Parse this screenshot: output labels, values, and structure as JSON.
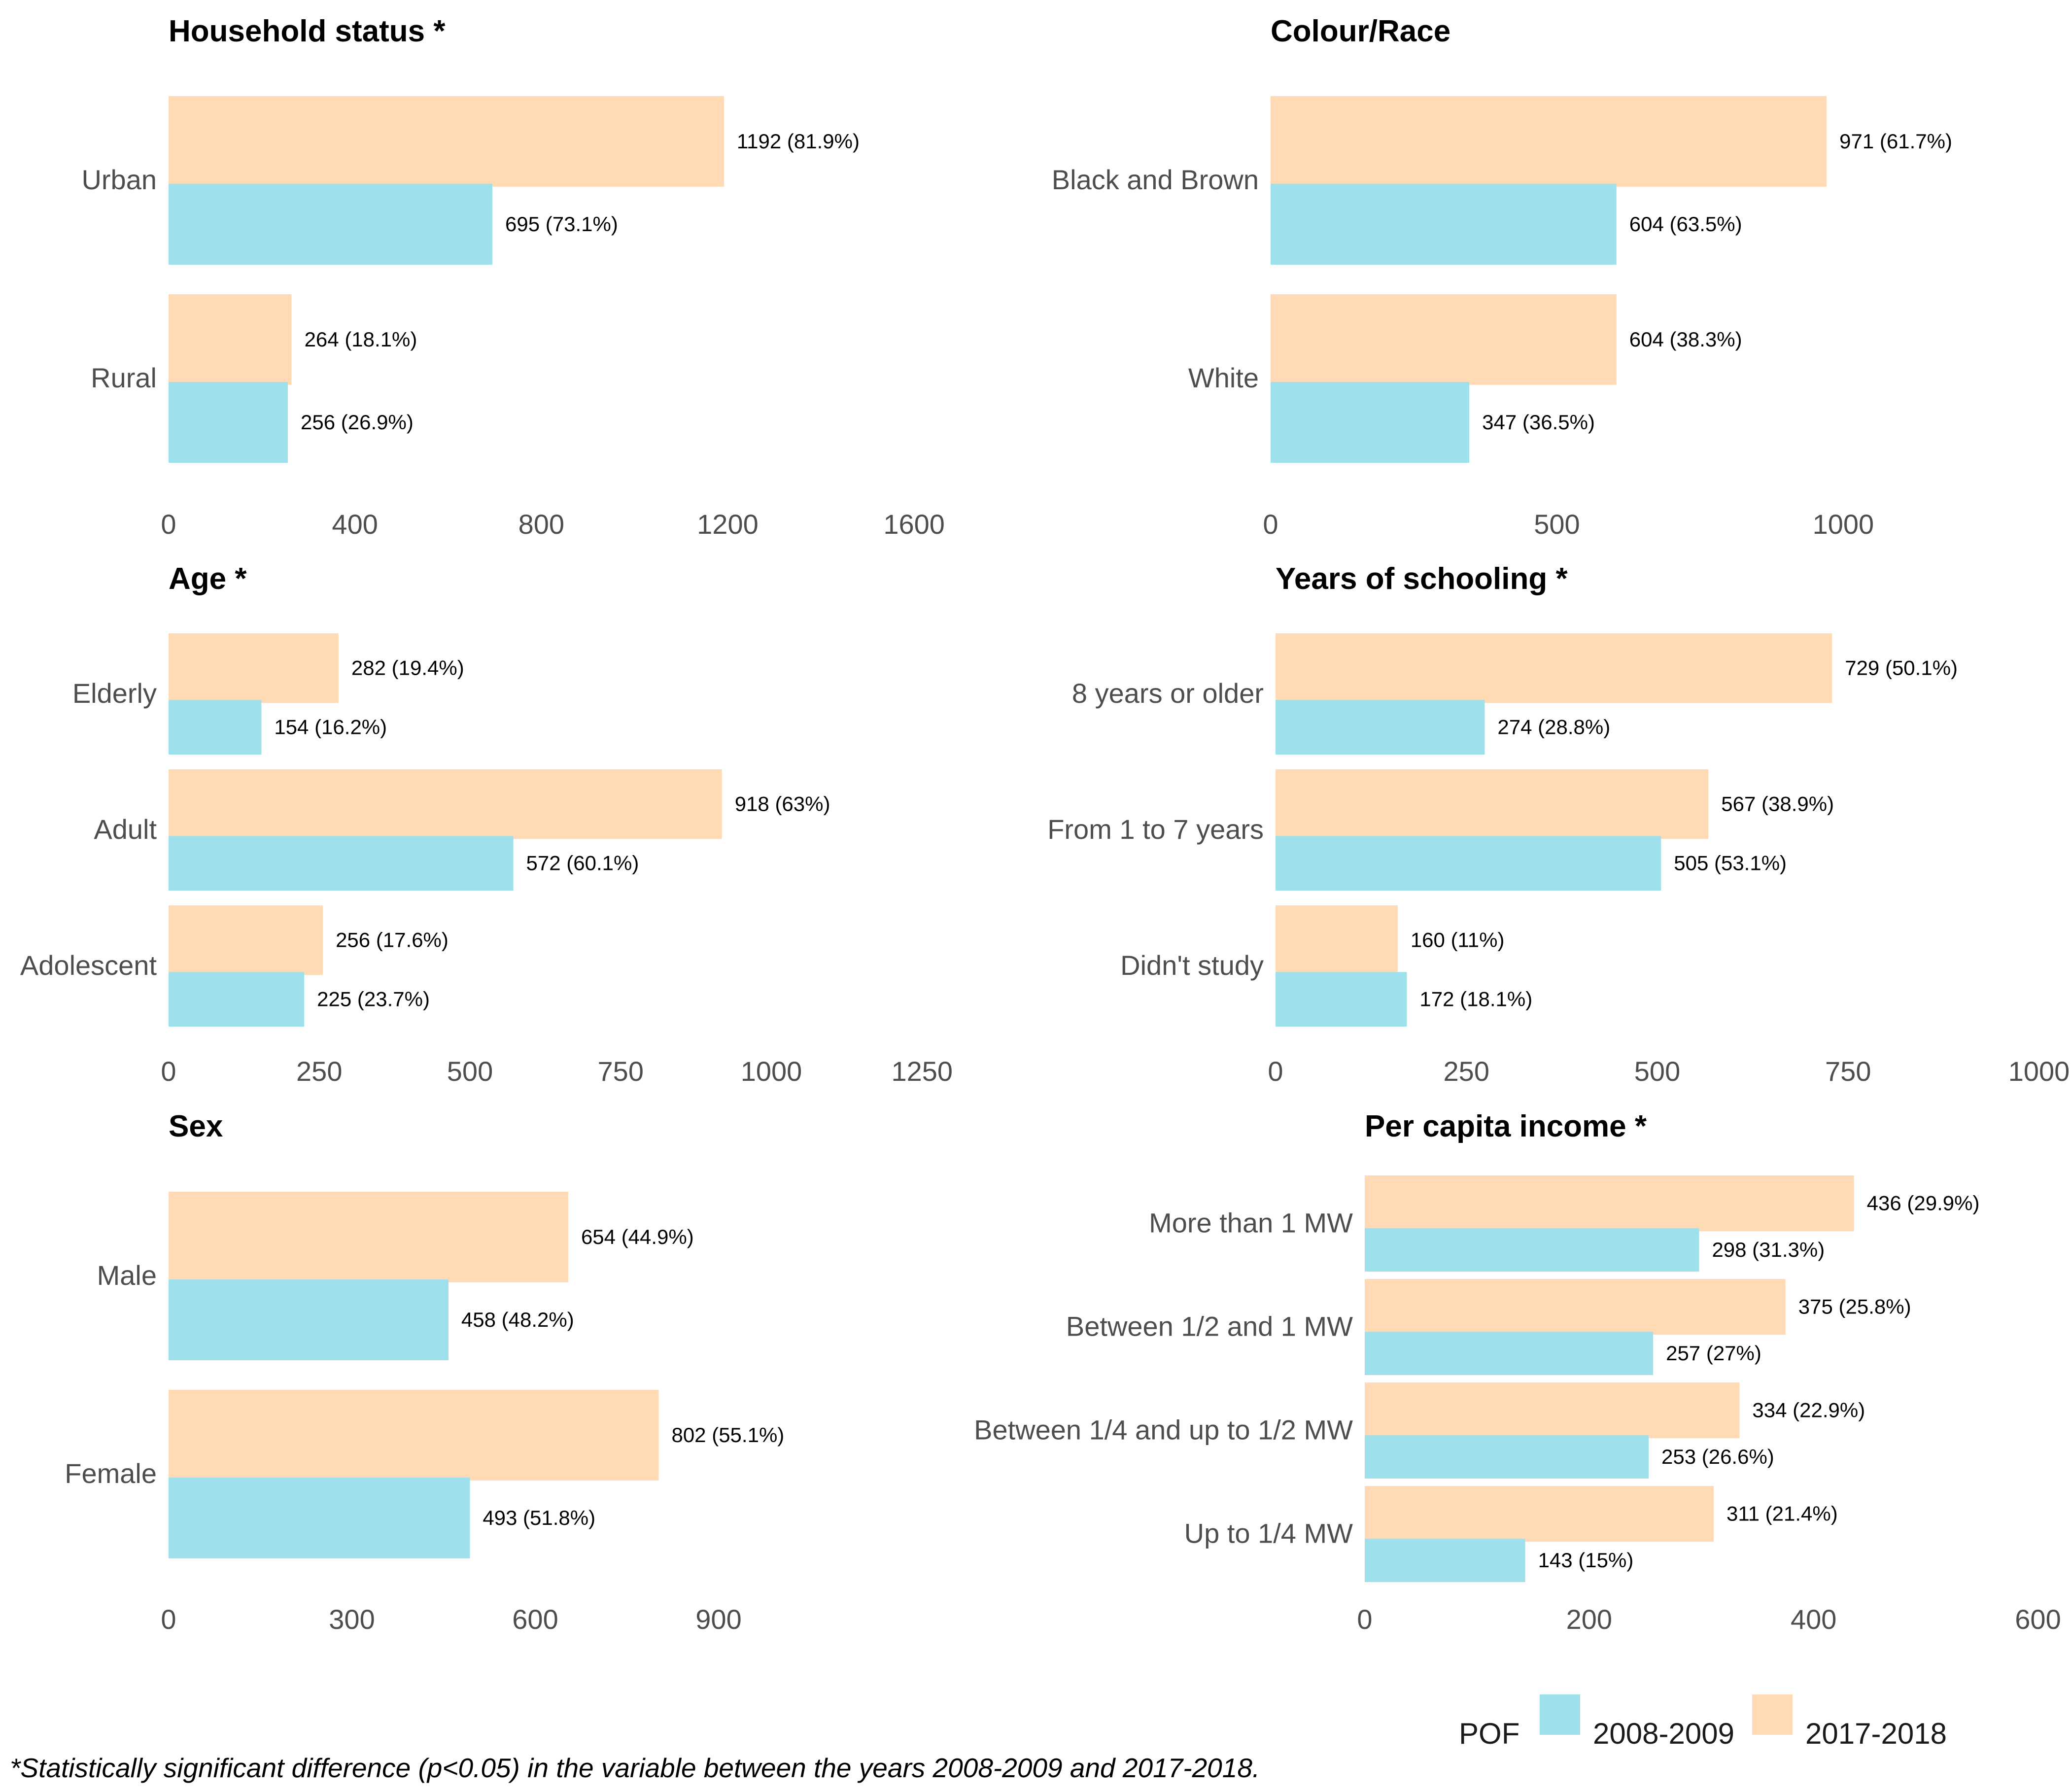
{
  "footnote": "*Statistically significant difference (p<0.05) in the variable between the years 2008-2009 and 2017-2018.",
  "legend": {
    "title": "POF",
    "entries": [
      {
        "label": "2008-2009",
        "color": "#9ee0ec"
      },
      {
        "label": "2017-2018",
        "color": "#ffdab5"
      }
    ]
  },
  "chart_data": [
    {
      "type": "bar",
      "title": "Household status *",
      "categories": [
        "Urban",
        "Rural"
      ],
      "series": [
        {
          "name": "2017-2018",
          "values": [
            1192,
            264
          ],
          "labels": [
            "1192 (81.9%)",
            "264 (18.1%)"
          ]
        },
        {
          "name": "2008-2009",
          "values": [
            695,
            256
          ],
          "labels": [
            "695 (73.1%)",
            "256 (26.9%)"
          ]
        }
      ],
      "xlim": [
        0,
        1600
      ],
      "ticks": [
        0,
        400,
        800,
        1200,
        1600
      ]
    },
    {
      "type": "bar",
      "title": "Colour/Race",
      "categories": [
        "Black and Brown",
        "White"
      ],
      "series": [
        {
          "name": "2017-2018",
          "values": [
            971,
            604
          ],
          "labels": [
            "971 (61.7%)",
            "604 (38.3%)"
          ]
        },
        {
          "name": "2008-2009",
          "values": [
            604,
            347
          ],
          "labels": [
            "604 (63.5%)",
            "347 (36.5%)"
          ]
        }
      ],
      "xlim": [
        0,
        1000
      ],
      "ticks": [
        0,
        500,
        1000
      ]
    },
    {
      "type": "bar",
      "title": "Age *",
      "categories": [
        "Elderly",
        "Adult",
        "Adolescent"
      ],
      "series": [
        {
          "name": "2017-2018",
          "values": [
            282,
            918,
            256
          ],
          "labels": [
            "282 (19.4%)",
            "918 (63%)",
            "256 (17.6%)"
          ]
        },
        {
          "name": "2008-2009",
          "values": [
            154,
            572,
            225
          ],
          "labels": [
            "154 (16.2%)",
            "572 (60.1%)",
            "225 (23.7%)"
          ]
        }
      ],
      "xlim": [
        0,
        1250
      ],
      "ticks": [
        0,
        250,
        500,
        750,
        1000,
        1250
      ]
    },
    {
      "type": "bar",
      "title": "Years of schooling *",
      "categories": [
        "8 years or older",
        "From 1 to 7 years",
        "Didn't study"
      ],
      "series": [
        {
          "name": "2017-2018",
          "values": [
            729,
            567,
            160
          ],
          "labels": [
            "729 (50.1%)",
            "567 (38.9%)",
            "160 (11%)"
          ]
        },
        {
          "name": "2008-2009",
          "values": [
            274,
            505,
            172
          ],
          "labels": [
            "274 (28.8%)",
            "505 (53.1%)",
            "172 (18.1%)"
          ]
        }
      ],
      "xlim": [
        0,
        1000
      ],
      "ticks": [
        0,
        250,
        500,
        750,
        1000
      ]
    },
    {
      "type": "bar",
      "title": "Sex",
      "categories": [
        "Male",
        "Female"
      ],
      "series": [
        {
          "name": "2017-2018",
          "values": [
            654,
            802
          ],
          "labels": [
            "654 (44.9%)",
            "802 (55.1%)"
          ]
        },
        {
          "name": "2008-2009",
          "values": [
            458,
            493
          ],
          "labels": [
            "458 (48.2%)",
            "493 (51.8%)"
          ]
        }
      ],
      "xlim": [
        0,
        1000
      ],
      "ticks": [
        0,
        300,
        600,
        900
      ]
    },
    {
      "type": "bar",
      "title": "Per capita income *",
      "categories": [
        "More than 1 MW",
        "Between 1/2 and 1 MW",
        "Between 1/4 and up to 1/2 MW",
        "Up to 1/4 MW"
      ],
      "series": [
        {
          "name": "2017-2018",
          "values": [
            436,
            375,
            334,
            311
          ],
          "labels": [
            "436 (29.9%)",
            "375 (25.8%)",
            "334 (22.9%)",
            "311 (21.4%)"
          ]
        },
        {
          "name": "2008-2009",
          "values": [
            298,
            257,
            253,
            143
          ],
          "labels": [
            "298 (31.3%)",
            "257 (27%)",
            "253 (26.6%)",
            "143 (15%)"
          ]
        }
      ],
      "xlim": [
        0,
        600
      ],
      "ticks": [
        0,
        200,
        400,
        600
      ]
    }
  ]
}
